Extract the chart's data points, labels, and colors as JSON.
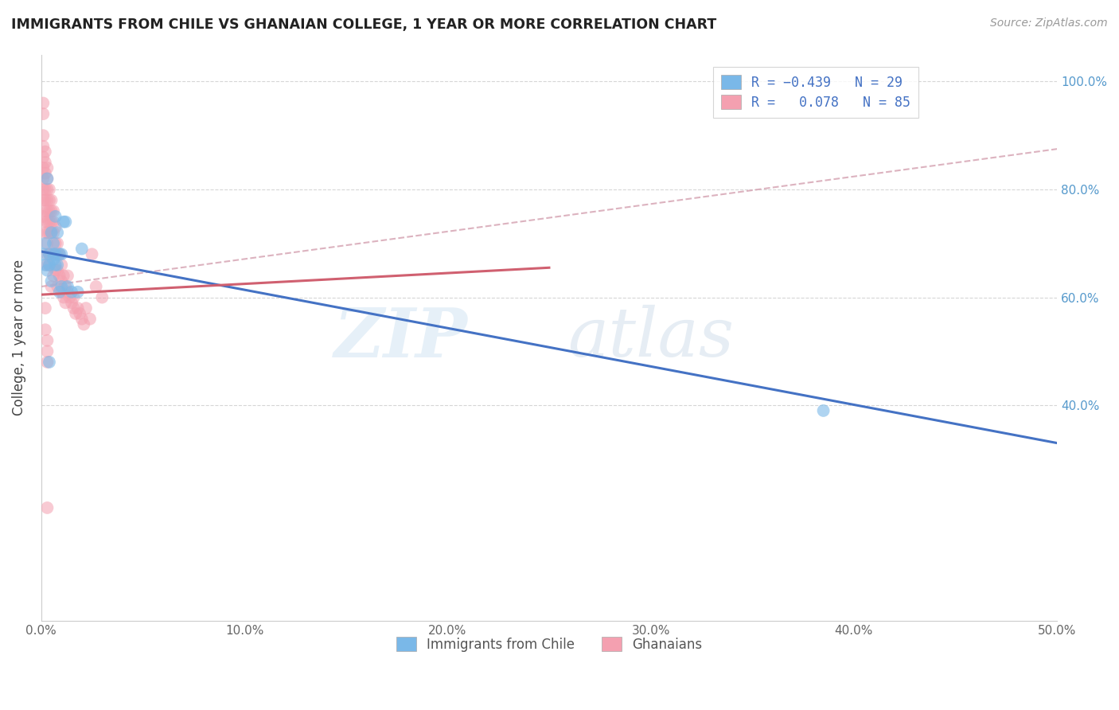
{
  "title": "IMMIGRANTS FROM CHILE VS GHANAIAN COLLEGE, 1 YEAR OR MORE CORRELATION CHART",
  "source": "Source: ZipAtlas.com",
  "ylabel": "College, 1 year or more",
  "legend_bottom": [
    "Immigrants from Chile",
    "Ghanaians"
  ],
  "blue_scatter_color": "#7ab8e8",
  "pink_scatter_color": "#f4a0b0",
  "blue_line_color": "#4472c4",
  "pink_line_color": "#d06070",
  "dashed_line_color": "#d4a0b0",
  "blue_line_x0": 0.0,
  "blue_line_y0": 0.685,
  "blue_line_x1": 0.5,
  "blue_line_y1": 0.33,
  "pink_line_x0": 0.0,
  "pink_line_y0": 0.605,
  "pink_line_x1": 0.25,
  "pink_line_y1": 0.655,
  "dashed_line_x0": 0.0,
  "dashed_line_y0": 0.62,
  "dashed_line_x1": 0.5,
  "dashed_line_y1": 0.875,
  "blue_scatter_x": [
    0.001,
    0.002,
    0.002,
    0.003,
    0.003,
    0.004,
    0.004,
    0.005,
    0.005,
    0.006,
    0.006,
    0.006,
    0.007,
    0.007,
    0.007,
    0.008,
    0.008,
    0.009,
    0.009,
    0.01,
    0.01,
    0.011,
    0.012,
    0.013,
    0.015,
    0.018,
    0.02,
    0.385,
    0.004
  ],
  "blue_scatter_y": [
    0.68,
    0.7,
    0.66,
    0.82,
    0.65,
    0.68,
    0.66,
    0.72,
    0.63,
    0.67,
    0.68,
    0.7,
    0.68,
    0.66,
    0.75,
    0.72,
    0.66,
    0.68,
    0.61,
    0.68,
    0.62,
    0.74,
    0.74,
    0.62,
    0.61,
    0.61,
    0.69,
    0.39,
    0.48
  ],
  "pink_scatter_x": [
    0.001,
    0.001,
    0.001,
    0.001,
    0.001,
    0.001,
    0.001,
    0.001,
    0.001,
    0.001,
    0.002,
    0.002,
    0.002,
    0.002,
    0.002,
    0.002,
    0.002,
    0.002,
    0.003,
    0.003,
    0.003,
    0.003,
    0.003,
    0.003,
    0.003,
    0.003,
    0.003,
    0.003,
    0.004,
    0.004,
    0.004,
    0.004,
    0.004,
    0.004,
    0.004,
    0.005,
    0.005,
    0.005,
    0.005,
    0.005,
    0.005,
    0.006,
    0.006,
    0.006,
    0.006,
    0.006,
    0.007,
    0.007,
    0.007,
    0.007,
    0.008,
    0.008,
    0.008,
    0.008,
    0.009,
    0.009,
    0.01,
    0.01,
    0.01,
    0.011,
    0.011,
    0.012,
    0.012,
    0.013,
    0.013,
    0.014,
    0.015,
    0.016,
    0.016,
    0.017,
    0.018,
    0.019,
    0.02,
    0.021,
    0.022,
    0.024,
    0.025,
    0.027,
    0.03,
    0.002,
    0.002,
    0.003,
    0.003,
    0.003,
    0.003
  ],
  "pink_scatter_y": [
    0.96,
    0.94,
    0.9,
    0.88,
    0.86,
    0.84,
    0.82,
    0.8,
    0.78,
    0.75,
    0.87,
    0.85,
    0.83,
    0.8,
    0.78,
    0.76,
    0.74,
    0.72,
    0.84,
    0.82,
    0.8,
    0.78,
    0.76,
    0.74,
    0.72,
    0.7,
    0.68,
    0.66,
    0.8,
    0.78,
    0.76,
    0.74,
    0.72,
    0.68,
    0.66,
    0.78,
    0.76,
    0.74,
    0.72,
    0.68,
    0.62,
    0.76,
    0.74,
    0.72,
    0.68,
    0.64,
    0.73,
    0.7,
    0.68,
    0.65,
    0.7,
    0.68,
    0.65,
    0.62,
    0.68,
    0.64,
    0.66,
    0.63,
    0.61,
    0.64,
    0.6,
    0.62,
    0.59,
    0.64,
    0.61,
    0.6,
    0.59,
    0.58,
    0.6,
    0.57,
    0.58,
    0.57,
    0.56,
    0.55,
    0.58,
    0.56,
    0.68,
    0.62,
    0.6,
    0.58,
    0.54,
    0.52,
    0.5,
    0.48,
    0.21
  ],
  "xlim": [
    0.0,
    0.5
  ],
  "ylim": [
    0.0,
    1.05
  ],
  "yticks": [
    0.4,
    0.6,
    0.8,
    1.0
  ],
  "right_ytick_labels": [
    "40.0%",
    "60.0%",
    "80.0%",
    "100.0%"
  ],
  "xticks": [
    0.0,
    0.1,
    0.2,
    0.3,
    0.4,
    0.5
  ],
  "xtick_labels": [
    "0.0%",
    "10.0%",
    "20.0%",
    "30.0%",
    "40.0%",
    "50.0%"
  ],
  "figsize": [
    14.06,
    8.92
  ],
  "dpi": 100
}
